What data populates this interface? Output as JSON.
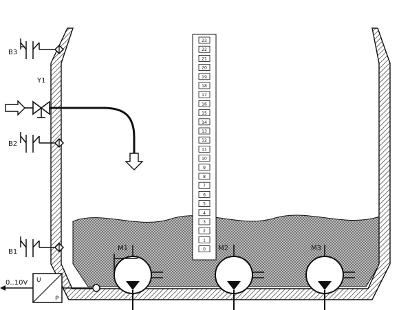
{
  "labels": {
    "b3": "B3",
    "y1": "Y1",
    "b2": "B2",
    "b1": "B1",
    "m1": "M1",
    "m2": "M2",
    "m3": "M3",
    "voltage": "0..10V",
    "u": "U",
    "p": "P"
  },
  "scale": [
    "23",
    "22",
    "21",
    "20",
    "19",
    "18",
    "17",
    "16",
    "15",
    "14",
    "13",
    "12",
    "11",
    "10",
    "9",
    "8",
    "7",
    "6",
    "5",
    "4",
    "3",
    "2",
    "1",
    "0"
  ],
  "colors": {
    "line": "#111111",
    "hatch": "#333333",
    "liquid_dots": "#555555",
    "background": "#ffffff"
  }
}
